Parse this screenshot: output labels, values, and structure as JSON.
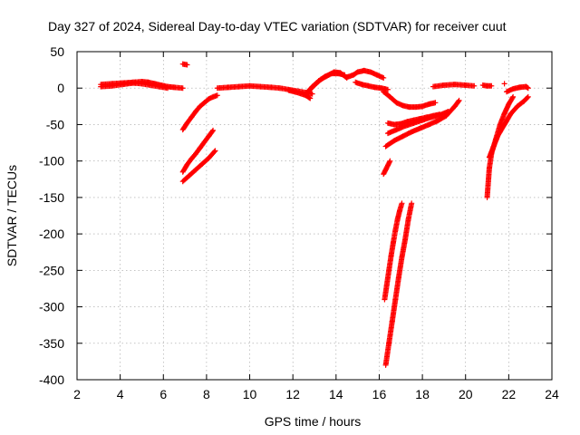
{
  "chart_data": {
    "type": "scatter",
    "title": "Day 327 of 2024, Sidereal Day-to-day VTEC variation (SDTVAR) for receiver cuut",
    "xlabel": "GPS time / hours",
    "ylabel": "SDTVAR / TECUs",
    "xlim": [
      2,
      24
    ],
    "ylim": [
      -400,
      50
    ],
    "xticks": [
      "2",
      "4",
      "6",
      "8",
      "10",
      "12",
      "14",
      "16",
      "18",
      "20",
      "22",
      "24"
    ],
    "yticks": [
      "50",
      "0",
      "-50",
      "-100",
      "-150",
      "-200",
      "-250",
      "-300",
      "-350",
      "-400"
    ],
    "grid": true,
    "marker": "+",
    "series": [
      {
        "name": "SDTVAR",
        "color": "#ff0000",
        "tracks": [
          {
            "x": [
              3.1,
              3.6,
              4.1,
              4.6,
              5.0,
              5.3,
              5.6,
              5.9,
              6.2,
              6.5,
              6.9
            ],
            "y": [
              5,
              6,
              7,
              8,
              9,
              8,
              6,
              4,
              2,
              1,
              0
            ]
          },
          {
            "x": [
              3.1,
              3.6,
              4.1,
              4.6,
              5.0,
              5.4,
              5.8,
              6.2
            ],
            "y": [
              2,
              3,
              5,
              7,
              6,
              4,
              2,
              0
            ]
          },
          {
            "x": [
              6.9,
              7.1
            ],
            "y": [
              33,
              32
            ]
          },
          {
            "x": [
              6.9,
              7.1,
              7.3,
              7.5,
              7.7,
              7.9,
              8.1,
              8.3,
              8.5
            ],
            "y": [
              -57,
              -48,
              -40,
              -32,
              -25,
              -20,
              -15,
              -12,
              -10
            ]
          },
          {
            "x": [
              6.9,
              7.1,
              7.3,
              7.5,
              7.7,
              7.9,
              8.1,
              8.3
            ],
            "y": [
              -115,
              -105,
              -97,
              -90,
              -82,
              -74,
              -66,
              -58
            ]
          },
          {
            "x": [
              6.9,
              7.2,
              7.5,
              7.8,
              8.1,
              8.4
            ],
            "y": [
              -128,
              -120,
              -112,
              -104,
              -96,
              -86
            ]
          },
          {
            "x": [
              8.5,
              9.0,
              9.5,
              10.0,
              10.5,
              11.0,
              11.4
            ],
            "y": [
              0,
              1,
              2,
              3,
              2,
              1,
              0
            ]
          },
          {
            "x": [
              11.4,
              11.8,
              12.2,
              12.6,
              12.9
            ],
            "y": [
              0,
              -2,
              -4,
              -6,
              -8
            ]
          },
          {
            "x": [
              11.8,
              12.2,
              12.6,
              12.8
            ],
            "y": [
              -3,
              -6,
              -10,
              -14
            ]
          },
          {
            "x": [
              12.6,
              12.9,
              13.2,
              13.5,
              13.8,
              14.1,
              14.4
            ],
            "y": [
              -8,
              2,
              10,
              16,
              20,
              20,
              18
            ]
          },
          {
            "x": [
              12.7,
              13.0,
              13.3,
              13.6,
              13.9,
              14.2,
              14.5
            ],
            "y": [
              -5,
              4,
              12,
              17,
              22,
              21,
              14
            ]
          },
          {
            "x": [
              14.5,
              14.8,
              15.0,
              15.3,
              15.6,
              15.9,
              16.2
            ],
            "y": [
              15,
              18,
              22,
              24,
              22,
              18,
              14
            ]
          },
          {
            "x": [
              14.9,
              15.2,
              15.5,
              15.8,
              16.1,
              16.4
            ],
            "y": [
              8,
              5,
              3,
              1,
              0,
              -2
            ]
          },
          {
            "x": [
              16.2,
              16.5,
              16.8,
              17.1,
              17.4,
              17.7,
              18.0,
              18.3,
              18.6
            ],
            "y": [
              -5,
              -12,
              -20,
              -24,
              -26,
              -26,
              -25,
              -22,
              -20
            ]
          },
          {
            "x": [
              16.4,
              16.7,
              17.0,
              17.3,
              17.6,
              17.9,
              18.2,
              18.5,
              18.8
            ],
            "y": [
              -48,
              -50,
              -49,
              -46,
              -44,
              -42,
              -40,
              -38,
              -36
            ]
          },
          {
            "x": [
              16.4,
              16.8,
              17.2,
              17.6,
              18.0,
              18.4,
              18.8,
              19.2
            ],
            "y": [
              -62,
              -57,
              -52,
              -48,
              -44,
              -40,
              -37,
              -32
            ]
          },
          {
            "x": [
              16.3,
              16.7,
              17.1,
              17.5,
              17.9,
              18.3,
              18.7,
              19.1,
              19.5,
              19.7
            ],
            "y": [
              -80,
              -72,
              -66,
              -60,
              -55,
              -50,
              -45,
              -38,
              -25,
              -17
            ]
          },
          {
            "x": [
              16.2,
              16.3,
              16.4,
              16.5
            ],
            "y": [
              -118,
              -112,
              -106,
              -100
            ]
          },
          {
            "x": [
              16.25,
              16.35,
              16.45,
              16.55,
              16.65,
              16.75,
              16.85,
              16.95,
              17.05
            ],
            "y": [
              -290,
              -270,
              -250,
              -230,
              -212,
              -195,
              -180,
              -168,
              -158
            ]
          },
          {
            "x": [
              16.3,
              16.45,
              16.6,
              16.75,
              16.9,
              17.05,
              17.2,
              17.35,
              17.5
            ],
            "y": [
              -380,
              -350,
              -320,
              -290,
              -260,
              -232,
              -208,
              -180,
              -158
            ]
          },
          {
            "x": [
              18.5,
              19.0,
              19.5,
              20.0,
              20.4
            ],
            "y": [
              2,
              4,
              5,
              4,
              3
            ]
          },
          {
            "x": [
              20.8,
              21.0,
              21.2
            ],
            "y": [
              4,
              3,
              3
            ]
          },
          {
            "x": [
              21.0,
              21.1,
              21.2,
              21.4,
              21.6,
              21.8,
              22.0,
              22.2
            ],
            "y": [
              -150,
              -110,
              -90,
              -70,
              -50,
              -35,
              -22,
              -12
            ]
          },
          {
            "x": [
              21.1,
              21.3,
              21.5,
              21.8,
              22.1,
              22.4,
              22.7,
              22.9
            ],
            "y": [
              -95,
              -80,
              -65,
              -50,
              -35,
              -25,
              -18,
              -12
            ]
          },
          {
            "x": [
              21.9,
              22.2,
              22.5,
              22.8,
              22.9
            ],
            "y": [
              -5,
              -1,
              1,
              2,
              0
            ]
          },
          {
            "x": [
              21.8
            ],
            "y": [
              6
            ]
          }
        ]
      }
    ]
  }
}
